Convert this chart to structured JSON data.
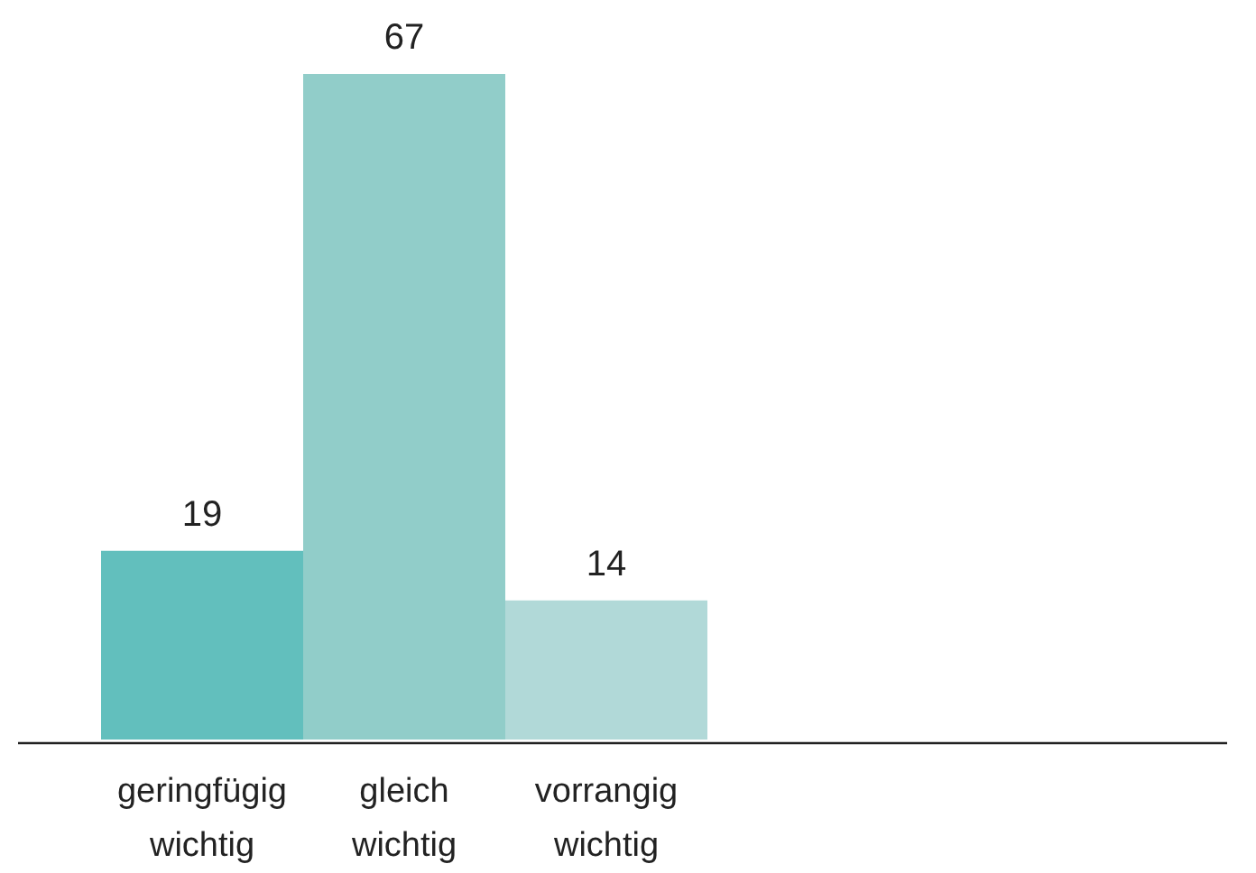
{
  "chart_data": {
    "type": "bar",
    "categories": [
      "geringfügig\nwichtig",
      "gleich\nwichtig",
      "vorrangig\nwichtig"
    ],
    "values": [
      19,
      67,
      14
    ],
    "colors": [
      "#62bfbd",
      "#91cdc9",
      "#b1d9d8"
    ],
    "data_labels": true
  }
}
